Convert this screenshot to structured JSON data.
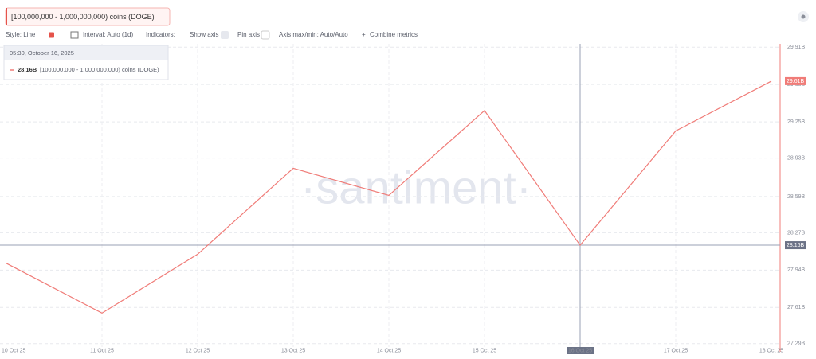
{
  "toolbar": {
    "style": "Style: Line",
    "interval": "Interval: Auto (1d)",
    "indicators": "Indicators:",
    "show_axis": "Show axis",
    "pin_axis": "Pin axis",
    "axis_minmax": "Axis max/min: Auto/Auto",
    "combine": "Combine metrics"
  },
  "chart_data": {
    "type": "line",
    "watermark": "·santiment·",
    "tooltip_date": "05:30, October 16, 2025",
    "categories": [
      "10 Oct 25",
      "11 Oct 25",
      "12 Oct 25",
      "13 Oct 25",
      "14 Oct 25",
      "15 Oct 25",
      "16 Oct 25",
      "17 Oct 25",
      "18 Oct 25"
    ],
    "series": [
      {
        "name": "[100,000,000 - 1,000,000,000) coins (DOGE)",
        "color": "#f07c78",
        "values": [
          28.0,
          27.56,
          28.08,
          28.84,
          28.6,
          29.35,
          28.16,
          29.17,
          29.61
        ],
        "value_labels": [
          null,
          null,
          null,
          null,
          null,
          null,
          "28.16B",
          null,
          "29.61B"
        ]
      }
    ],
    "ylim": [
      27.26,
      29.94
    ],
    "yticks": [
      {
        "value": 27.29,
        "label": "27.29B"
      },
      {
        "value": 27.61,
        "label": "27.61B"
      },
      {
        "value": 27.94,
        "label": "27.94B"
      },
      {
        "value": 28.27,
        "label": "28.27B"
      },
      {
        "value": 28.59,
        "label": "28.59B"
      },
      {
        "value": 28.93,
        "label": "28.93B"
      },
      {
        "value": 29.25,
        "label": "29.25B"
      },
      {
        "value": 29.58,
        "label": "29.58B"
      },
      {
        "value": 29.91,
        "label": "29.91B"
      }
    ],
    "grid": true,
    "hover_index": 6
  }
}
